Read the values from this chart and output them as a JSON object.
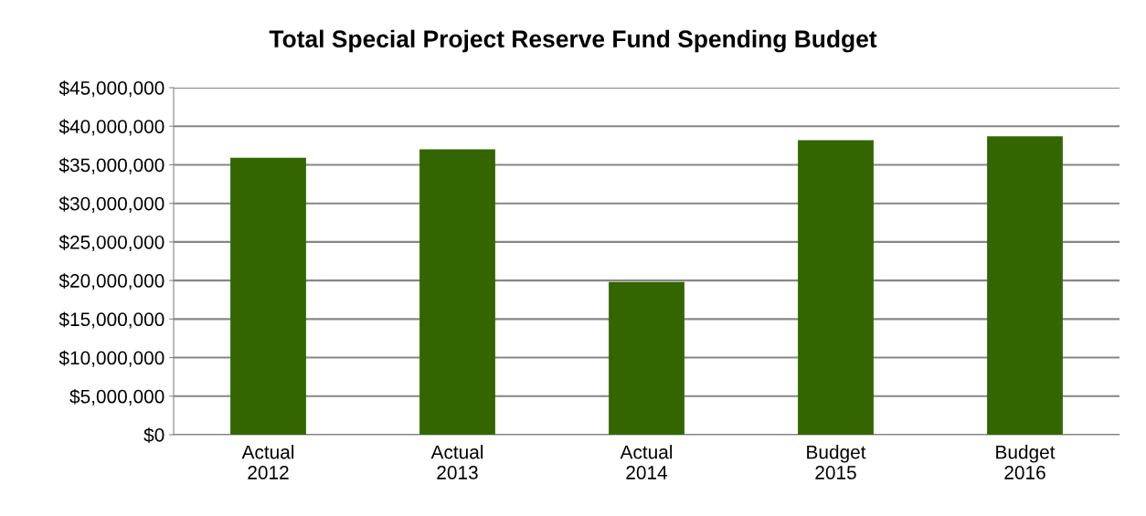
{
  "chart_data": {
    "type": "bar",
    "title": "Total Special Project Reserve Fund Spending Budget",
    "categories": [
      "Actual\n2012",
      "Actual\n2013",
      "Actual\n2014",
      "Budget\n2015",
      "Budget\n2016"
    ],
    "values": [
      35900000,
      37000000,
      19800000,
      38200000,
      38700000
    ],
    "color": "#336600",
    "ylim": [
      0,
      45000000
    ],
    "yticks": [
      {
        "value": 0,
        "label": "$0"
      },
      {
        "value": 5000000,
        "label": "$5,000,000"
      },
      {
        "value": 10000000,
        "label": "$10,000,000"
      },
      {
        "value": 15000000,
        "label": "$15,000,000"
      },
      {
        "value": 20000000,
        "label": "$20,000,000"
      },
      {
        "value": 25000000,
        "label": "$25,000,000"
      },
      {
        "value": 30000000,
        "label": "$30,000,000"
      },
      {
        "value": 35000000,
        "label": "$35,000,000"
      },
      {
        "value": 40000000,
        "label": "$40,000,000"
      },
      {
        "value": 45000000,
        "label": "$45,000,000"
      }
    ],
    "grid": "y",
    "legend": false
  }
}
